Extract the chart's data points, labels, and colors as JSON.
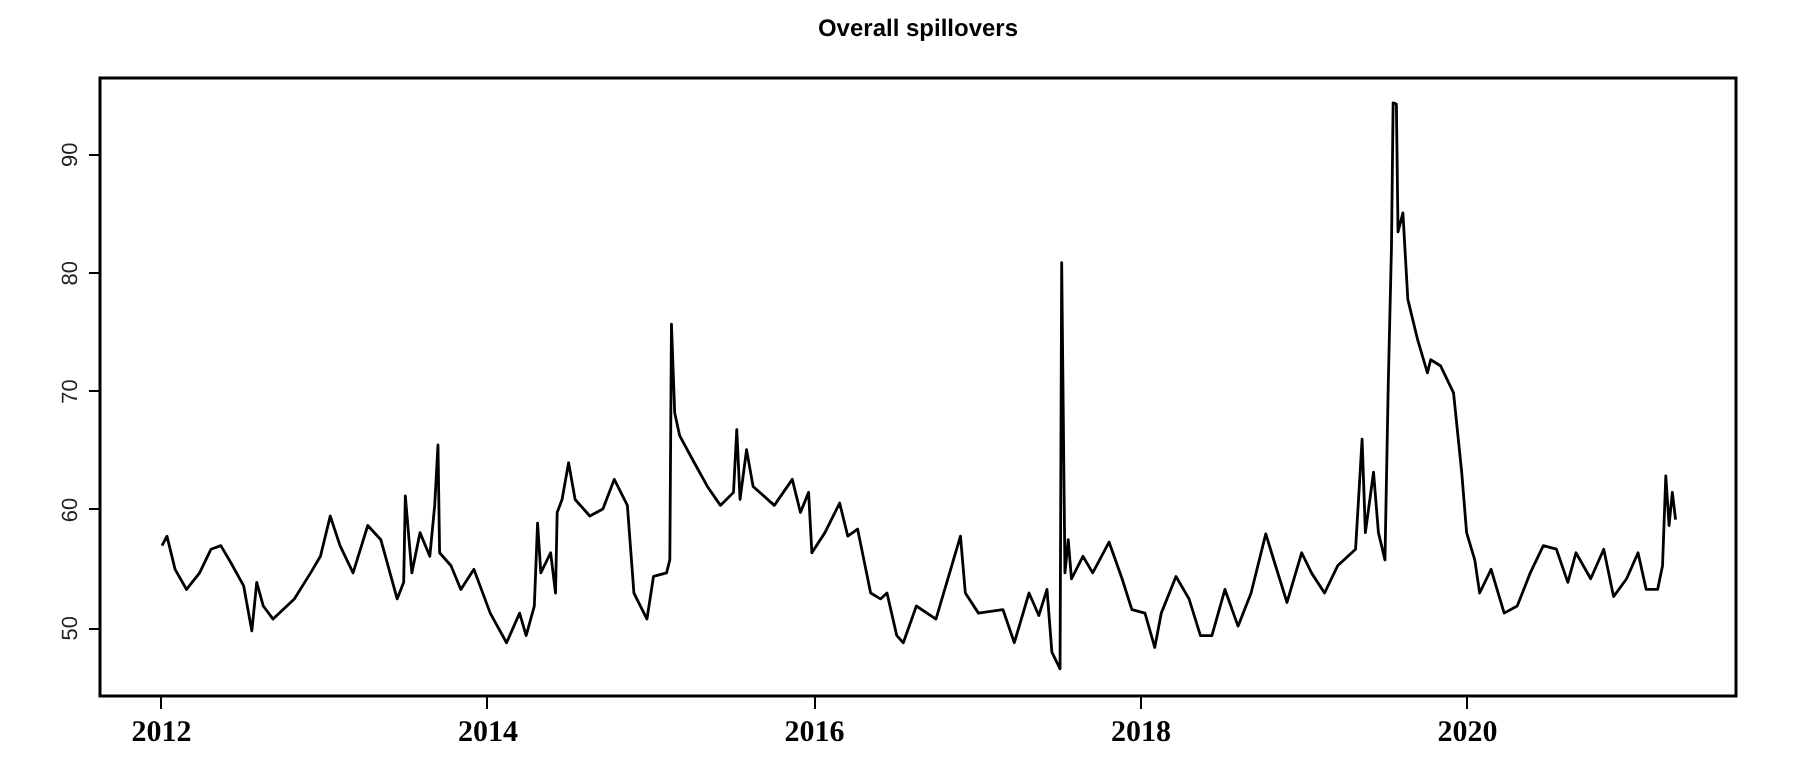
{
  "chart_data": {
    "type": "line",
    "title": "Overall spillovers",
    "x": [
      2012.01,
      2012.04,
      2012.09,
      2012.16,
      2012.24,
      2012.31,
      2012.37,
      2012.43,
      2012.51,
      2012.56,
      2012.59,
      2012.63,
      2012.69,
      2012.82,
      2012.92,
      2012.98,
      2013.04,
      2013.1,
      2013.18,
      2013.27,
      2013.35,
      2013.45,
      2013.49,
      2013.5,
      2013.54,
      2013.59,
      2013.65,
      2013.68,
      2013.7,
      2013.71,
      2013.78,
      2013.84,
      2013.92,
      2014.02,
      2014.12,
      2014.2,
      2014.24,
      2014.29,
      2014.31,
      2014.33,
      2014.39,
      2014.42,
      2014.43,
      2014.46,
      2014.5,
      2014.54,
      2014.63,
      2014.71,
      2014.78,
      2014.86,
      2014.9,
      2014.94,
      2014.98,
      2015.02,
      2015.1,
      2015.12,
      2015.13,
      2015.15,
      2015.18,
      2015.27,
      2015.35,
      2015.43,
      2015.51,
      2015.53,
      2015.55,
      2015.59,
      2015.63,
      2015.76,
      2015.87,
      2015.92,
      2015.97,
      2015.99,
      2016.07,
      2016.16,
      2016.21,
      2016.27,
      2016.35,
      2016.41,
      2016.45,
      2016.51,
      2016.55,
      2016.63,
      2016.75,
      2016.84,
      2016.9,
      2016.93,
      2017.01,
      2017.16,
      2017.23,
      2017.32,
      2017.38,
      2017.43,
      2017.46,
      2017.51,
      2017.52,
      2017.54,
      2017.56,
      2017.58,
      2017.65,
      2017.71,
      2017.81,
      2017.89,
      2017.95,
      2018.03,
      2018.09,
      2018.13,
      2018.22,
      2018.3,
      2018.37,
      2018.44,
      2018.52,
      2018.6,
      2018.68,
      2018.77,
      2018.83,
      2018.9,
      2018.99,
      2019.05,
      2019.13,
      2019.21,
      2019.32,
      2019.36,
      2019.38,
      2019.43,
      2019.46,
      2019.5,
      2019.52,
      2019.54,
      2019.55,
      2019.57,
      2019.58,
      2019.61,
      2019.64,
      2019.7,
      2019.76,
      2019.78,
      2019.84,
      2019.92,
      2019.97,
      2020.0,
      2020.05,
      2020.08,
      2020.15,
      2020.23,
      2020.31,
      2020.39,
      2020.47,
      2020.55,
      2020.62,
      2020.67,
      2020.76,
      2020.84,
      2020.9,
      2020.98,
      2021.05,
      2021.1,
      2021.17,
      2021.2,
      2021.22,
      2021.24,
      2021.26,
      2021.28
    ],
    "series": [
      {
        "color": "#000000",
        "values": [
          56.9,
          57.7,
          54.9,
          53.2,
          54.6,
          56.6,
          56.9,
          55.5,
          53.5,
          49.7,
          53.8,
          51.8,
          50.7,
          52.4,
          54.6,
          56.0,
          59.4,
          56.9,
          54.6,
          58.6,
          57.4,
          52.4,
          53.8,
          61.1,
          54.6,
          58.0,
          56.0,
          60.3,
          65.4,
          56.3,
          55.2,
          53.2,
          54.9,
          51.2,
          48.7,
          51.2,
          49.3,
          51.8,
          58.8,
          54.6,
          56.3,
          52.9,
          59.7,
          60.8,
          63.9,
          60.8,
          59.4,
          60.0,
          62.5,
          60.3,
          52.9,
          51.8,
          50.7,
          54.3,
          54.6,
          55.7,
          75.6,
          68.1,
          66.2,
          63.9,
          61.9,
          60.3,
          61.4,
          66.7,
          60.8,
          65.0,
          61.9,
          60.3,
          62.5,
          59.7,
          61.4,
          56.3,
          58.0,
          60.5,
          57.7,
          58.3,
          52.9,
          52.4,
          52.9,
          49.3,
          48.7,
          51.8,
          50.7,
          54.9,
          57.7,
          52.9,
          51.2,
          51.5,
          48.7,
          52.9,
          51.0,
          53.2,
          47.9,
          46.5,
          80.8,
          54.6,
          57.4,
          54.1,
          56.0,
          54.6,
          57.2,
          54.1,
          51.5,
          51.2,
          48.3,
          51.2,
          54.3,
          52.4,
          49.3,
          49.3,
          53.2,
          50.1,
          52.9,
          57.9,
          55.2,
          52.1,
          56.3,
          54.6,
          52.9,
          55.2,
          56.6,
          65.9,
          58.0,
          63.1,
          58.0,
          55.7,
          70.4,
          82.2,
          94.3,
          94.2,
          83.4,
          85.0,
          77.7,
          74.3,
          71.5,
          72.6,
          72.1,
          69.8,
          63.1,
          58.0,
          55.7,
          52.9,
          54.9,
          51.2,
          51.8,
          54.6,
          56.9,
          56.6,
          53.8,
          56.3,
          54.1,
          56.6,
          52.6,
          54.1,
          56.3,
          53.2,
          53.2,
          55.2,
          62.8,
          58.6,
          61.4,
          59.1
        ]
      }
    ],
    "xlim": [
      2011.63,
      2021.65
    ],
    "ylim": [
      44.2,
      96.4
    ],
    "xticks": [
      2012,
      2014,
      2016,
      2018,
      2020
    ],
    "yticks": [
      50,
      60,
      70,
      80,
      90
    ],
    "grid": false
  }
}
